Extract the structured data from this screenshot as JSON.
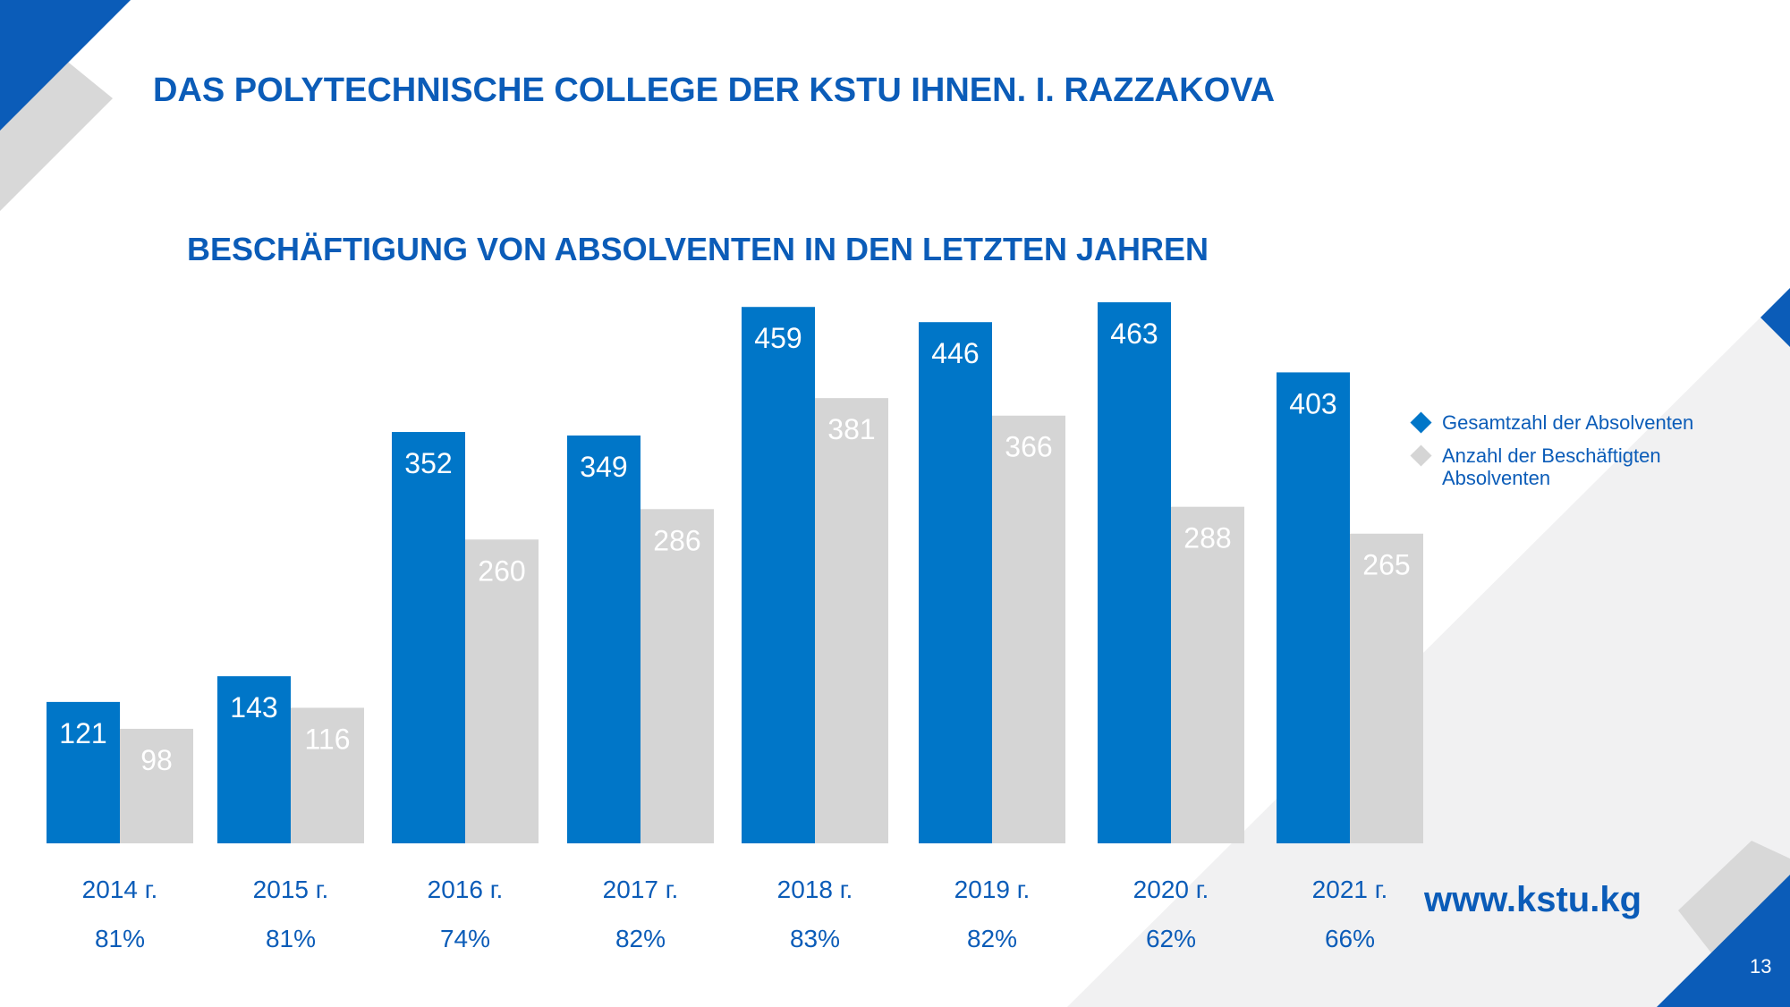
{
  "header": {
    "title": "DAS POLYTECHNISCHE COLLEGE DER KSTU IHNEN. I. RAZZAKOVA"
  },
  "footer": {
    "website": "www.kstu.kg",
    "page_number": "13"
  },
  "colors": {
    "primary_blue": "#0076C8",
    "gray": "#D5D5D5",
    "title_blue": "#0B5CB8",
    "light_gray_bg": "#F1F1F2"
  },
  "chart_data": {
    "type": "bar",
    "title": "BESCHÄFTIGUNG VON ABSOLVENTEN IN DEN LETZTEN JAHREN",
    "categories": [
      "2014 г.",
      "2015 г.",
      "2016 г.",
      "2017 г.",
      "2018 г.",
      "2019 г.",
      "2020 г.",
      "2021 г."
    ],
    "percentages": [
      "81%",
      "81%",
      "74%",
      "82%",
      "83%",
      "82%",
      "62%",
      "66%"
    ],
    "series": [
      {
        "name": "Gesamtzahl der Absolventen",
        "color": "#0076C8",
        "values": [
          121,
          143,
          352,
          349,
          459,
          446,
          463,
          403
        ]
      },
      {
        "name": "Anzahl der Beschäftigten Absolventen",
        "color": "#D5D5D5",
        "values": [
          98,
          116,
          260,
          286,
          381,
          366,
          288,
          265
        ]
      }
    ],
    "ylim": [
      0,
      463
    ],
    "legend_position": "right",
    "grid": false
  }
}
